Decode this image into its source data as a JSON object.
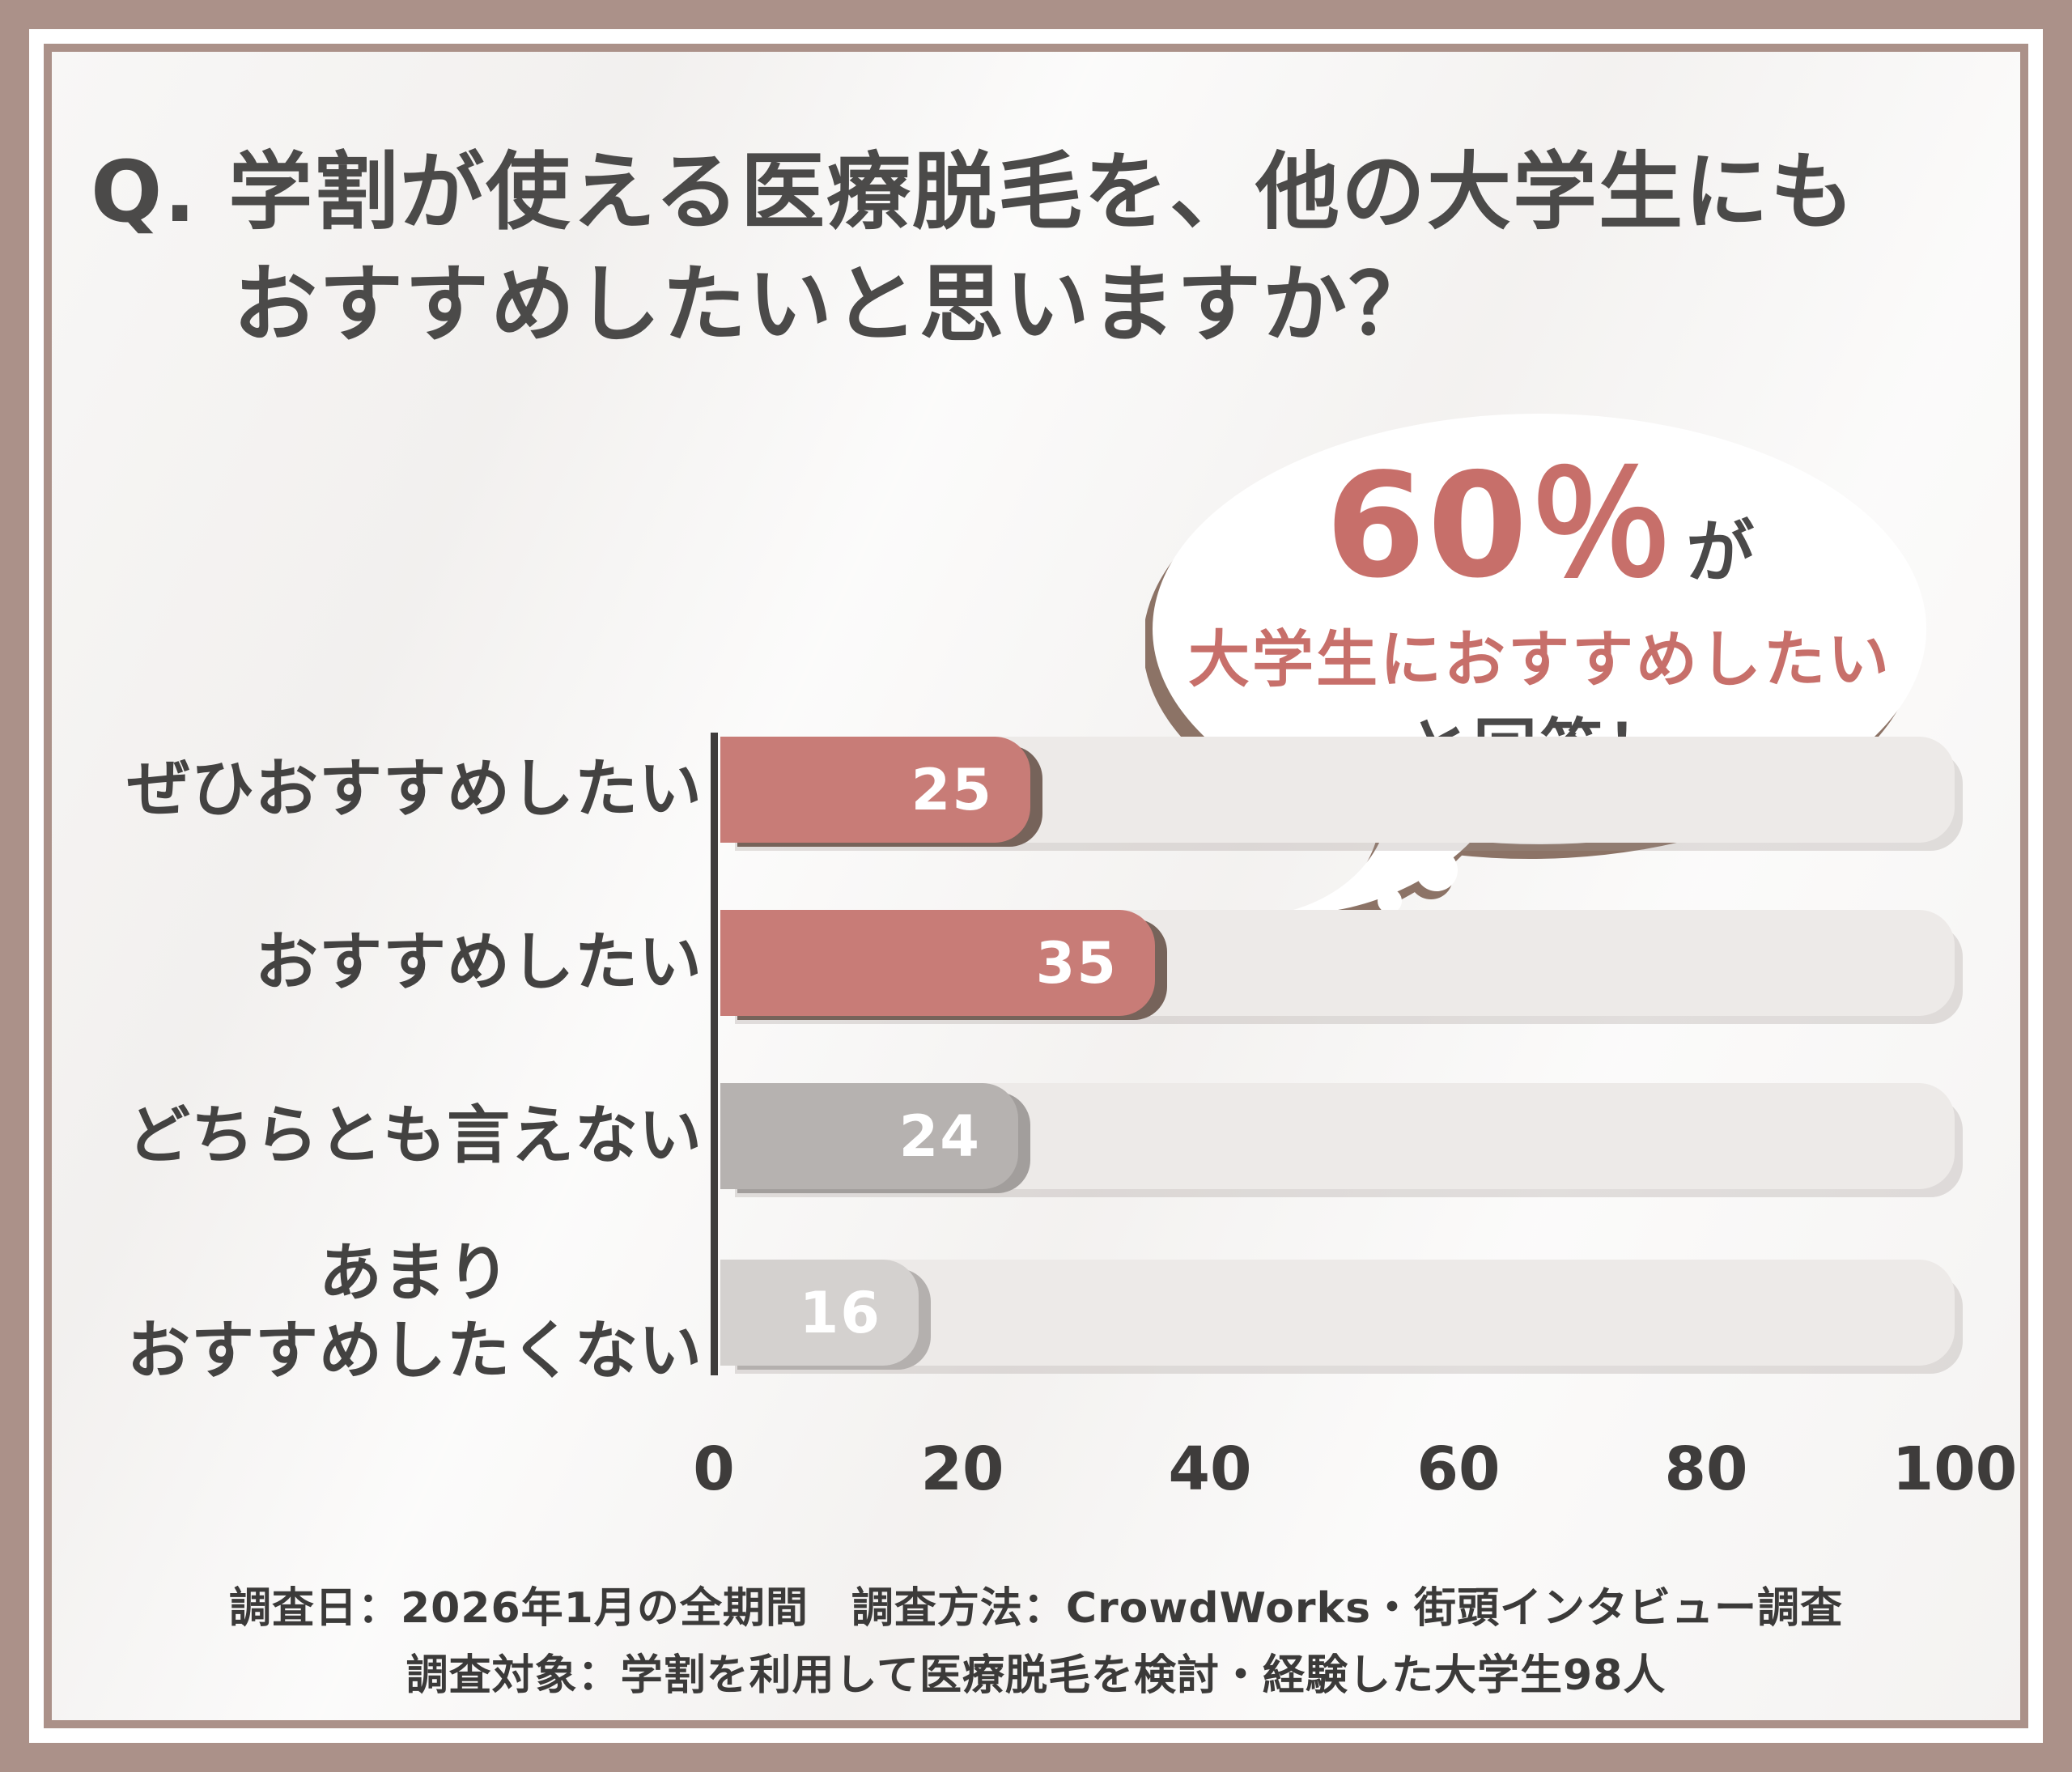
{
  "title": {
    "prefix": "Q.",
    "line1": "学割が使える医療脱毛を、他の大学生にも",
    "line2": "おすすめしたいと思いますか？"
  },
  "callout": {
    "percent": "60％",
    "suffix": "が",
    "line2": "大学生におすすめしたい",
    "line3": "と回答！"
  },
  "chart_data": {
    "type": "bar",
    "orientation": "horizontal",
    "categories": [
      "ぜひおすすめしたい",
      "おすすめしたい",
      "どちらとも言えない",
      "あまり\nおすすめしたくない"
    ],
    "values": [
      25,
      35,
      24,
      16
    ],
    "value_labels": [
      "25",
      "35",
      "24",
      "16"
    ],
    "bar_colors": [
      "#c87c77",
      "#c87c77",
      "#b6b2b0",
      "#d4d1cf"
    ],
    "bar_shadow_colors": [
      "#76635a",
      "#76635a",
      "#a29e9c",
      "#b4b0ae"
    ],
    "track_color": "#edeae8",
    "xlabel": "",
    "ylabel": "",
    "xlim": [
      0,
      100
    ],
    "x_ticks": [
      0,
      20,
      40,
      60,
      80,
      100
    ],
    "grid": false,
    "legend": false
  },
  "footer": {
    "line1": "調査日：2026年1月の全期間　調査方法：CrowdWorks・街頭インタビュー調査",
    "line2": "調査対象：学割を利用して医療脱毛を検討・経験した大学生98人"
  },
  "colors": {
    "frame": "#ab9189",
    "card_background": "#f8f7f6",
    "accent_rose": "#c76f6a",
    "text_dark": "#4b4a49",
    "bubble_shadow": "#8c7366",
    "bubble_fill": "#ffffff",
    "axis": "#3e3c3b"
  }
}
